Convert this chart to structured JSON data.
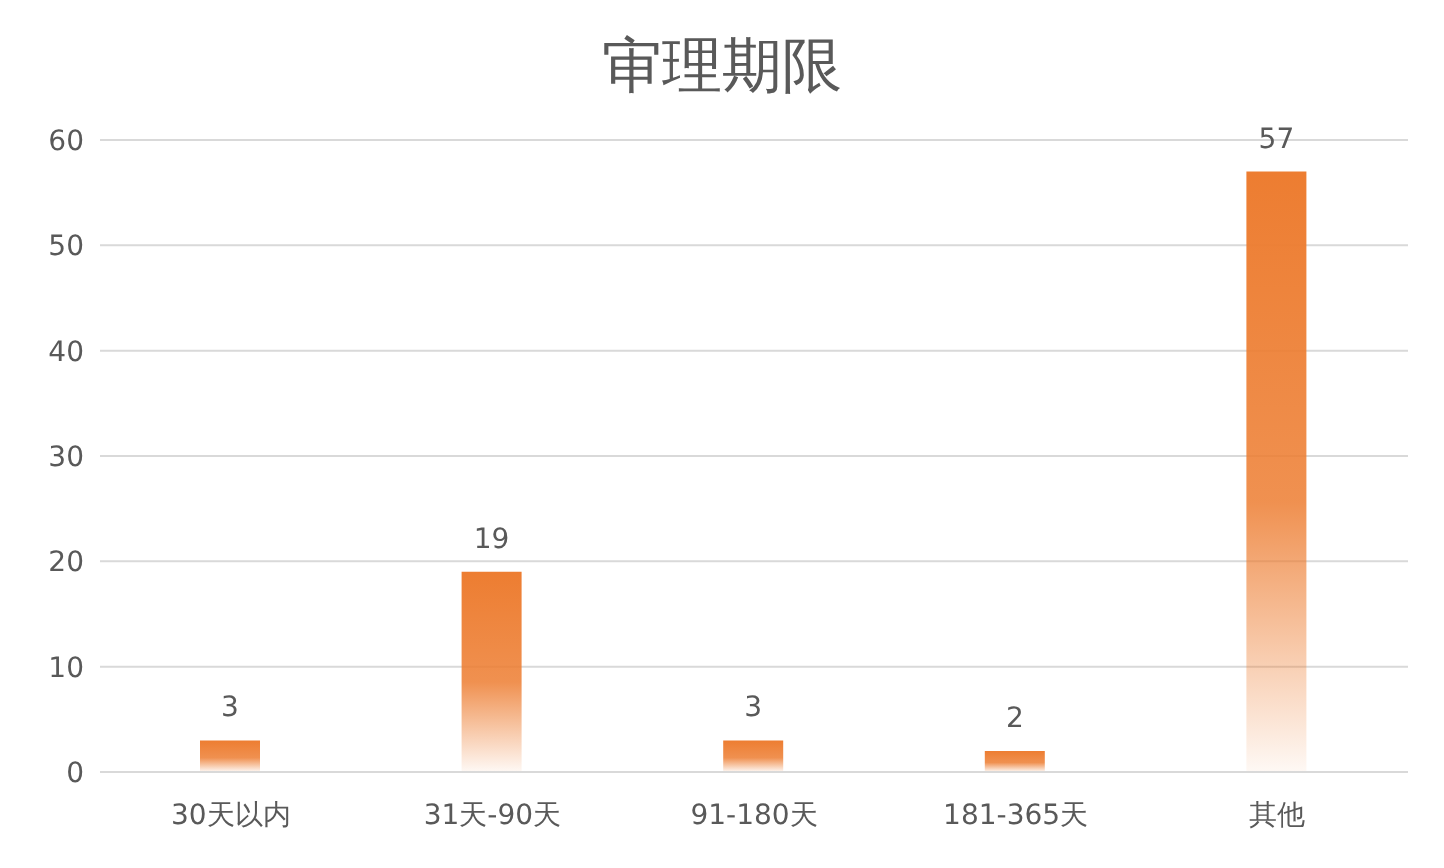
{
  "chart_data": {
    "type": "bar",
    "title": "审理期限",
    "categories": [
      "30天以内",
      "31天-90天",
      "91-180天",
      "181-365天",
      "其他"
    ],
    "values": [
      3,
      19,
      3,
      2,
      57
    ],
    "color": "#ed7d31",
    "ylim": [
      0,
      60
    ],
    "yticks": [
      0,
      10,
      20,
      30,
      40,
      50,
      60
    ],
    "grid": "y",
    "data_labels": true
  }
}
